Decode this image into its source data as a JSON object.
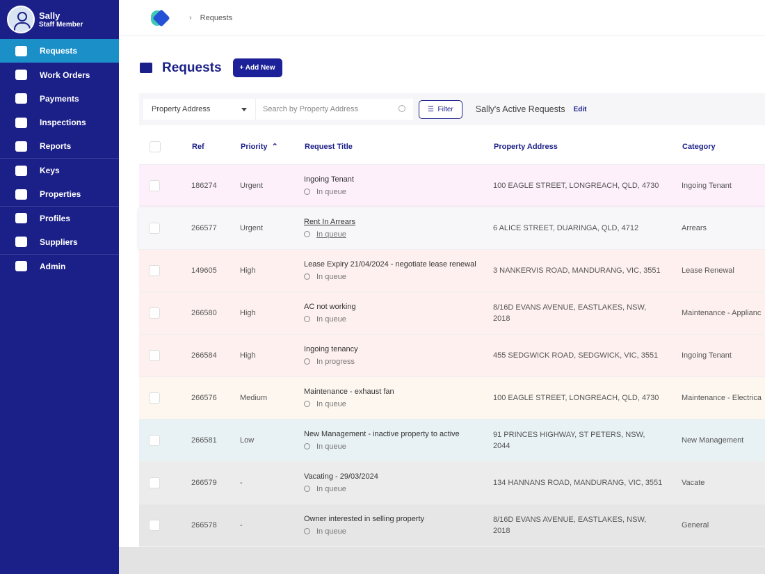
{
  "sidebar": {
    "user": {
      "name": "Sally",
      "role": "Staff Member"
    },
    "nav": [
      "Requests",
      "Work Orders",
      "Payments",
      "Inspections",
      "Reports",
      "Keys",
      "Properties",
      "Profiles",
      "Suppliers",
      "Admin"
    ]
  },
  "breadcrumb": "Requests",
  "page": {
    "title": "Requests",
    "add_button": "Add New"
  },
  "filters": {
    "field": "Property Address",
    "search_placeholder": "Search by Property Address",
    "filter_button": "Filter",
    "view_name": "Sally's Active Requests",
    "edit": "Edit"
  },
  "table": {
    "columns": [
      "Ref",
      "Priority",
      "Request Title",
      "Property Address",
      "Category"
    ],
    "rows": [
      {
        "ref": "186274",
        "priority": "Urgent",
        "title": "Ingoing Tenant",
        "status": "In queue",
        "address": "100 EAGLE STREET, LONGREACH, QLD, 4730",
        "category": "Ingoing Tenant"
      },
      {
        "ref": "266577",
        "priority": "Urgent",
        "title": "Rent In Arrears",
        "status": "In queue",
        "address": "6 ALICE STREET, DUARINGA, QLD, 4712",
        "category": "Arrears"
      },
      {
        "ref": "149605",
        "priority": "High",
        "title": "Lease Expiry 21/04/2024 - negotiate lease renewal",
        "status": "In queue",
        "address": "3 NANKERVIS ROAD, MANDURANG, VIC, 3551",
        "category": "Lease Renewal"
      },
      {
        "ref": "266580",
        "priority": "High",
        "title": "AC not working",
        "status": "In queue",
        "address": "8/16D EVANS AVENUE, EASTLAKES, NSW, 2018",
        "category": "Maintenance - Applianc"
      },
      {
        "ref": "266584",
        "priority": "High",
        "title": "Ingoing tenancy",
        "status": "In progress",
        "address": "455 SEDGWICK ROAD, SEDGWICK, VIC, 3551",
        "category": "Ingoing Tenant"
      },
      {
        "ref": "266576",
        "priority": "Medium",
        "title": "Maintenance - exhaust fan",
        "status": "In queue",
        "address": "100 EAGLE STREET, LONGREACH, QLD, 4730",
        "category": "Maintenance - Electrica"
      },
      {
        "ref": "266581",
        "priority": "Low",
        "title": "New Management - inactive property to active",
        "status": "In queue",
        "address": "91 PRINCES HIGHWAY, ST PETERS, NSW, 2044",
        "category": "New Management"
      },
      {
        "ref": "266579",
        "priority": "-",
        "title": "Vacating - 29/03/2024",
        "status": "In queue",
        "address": "134 HANNANS ROAD, MANDURANG, VIC, 3551",
        "category": "Vacate"
      },
      {
        "ref": "266578",
        "priority": "-",
        "title": "Owner interested in selling property",
        "status": "In queue",
        "address": "8/16D EVANS AVENUE, EASTLAKES, NSW, 2018",
        "category": "General"
      }
    ]
  }
}
